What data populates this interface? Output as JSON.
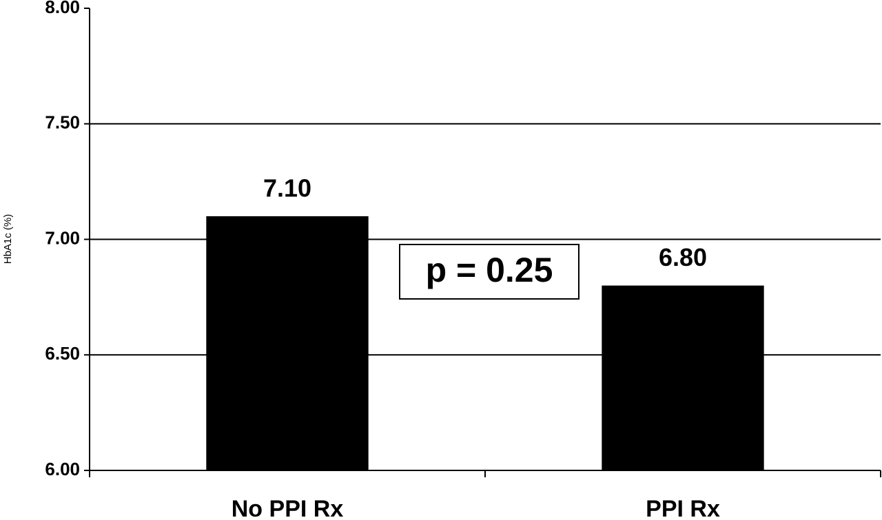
{
  "chart_data": {
    "type": "bar",
    "y_label": "HbA1c (%)",
    "categories": [
      "No PPI Rx",
      "PPI Rx"
    ],
    "values": [
      7.1,
      6.8
    ],
    "value_labels": [
      "7.10",
      "6.80"
    ],
    "color": "#000000",
    "ylim": [
      6,
      8
    ],
    "yticks": [
      {
        "value": 6,
        "label": "6.00"
      },
      {
        "value": 6.5,
        "label": "6.50"
      },
      {
        "value": 7,
        "label": "7.00"
      },
      {
        "value": 7.5,
        "label": "7.50"
      },
      {
        "value": 8,
        "label": "8.00"
      }
    ],
    "grid": true,
    "annotation": "p = 0.25"
  }
}
